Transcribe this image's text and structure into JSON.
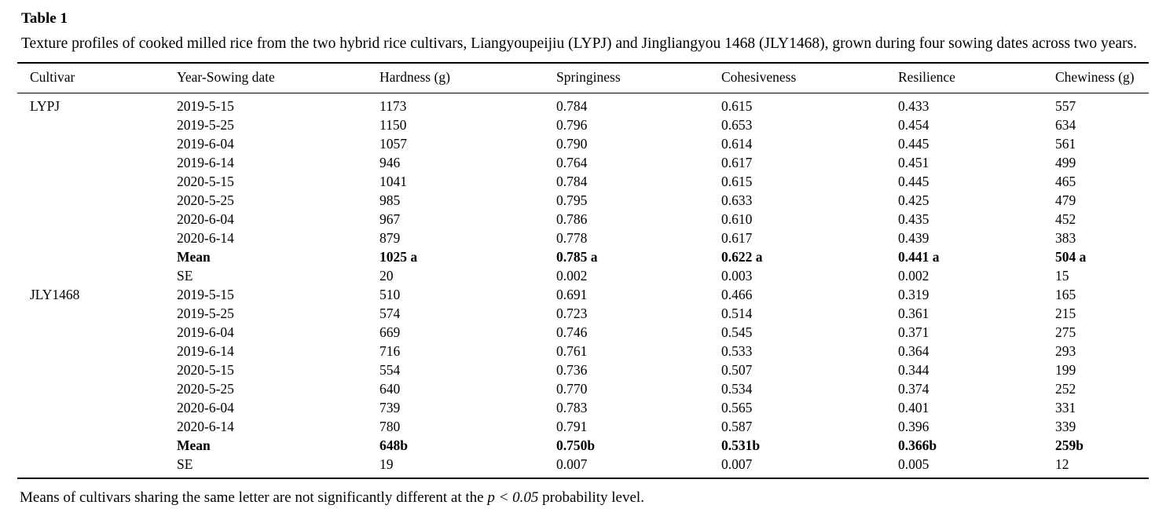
{
  "page": {
    "background_color": "#ffffff",
    "text_color": "#000000"
  },
  "table": {
    "label": "Table 1",
    "caption": "Texture profiles of cooked milled rice from the two hybrid rice cultivars, Liangyoupeijiu (LYPJ) and Jingliangyou 1468 (JLY1468), grown during four sowing dates across two years.",
    "columns": [
      "Cultivar",
      "Year-Sowing date",
      "Hardness (g)",
      "Springiness",
      "Cohesiveness",
      "Resilience",
      "Chewiness (g)"
    ],
    "rows": [
      {
        "cells": [
          "LYPJ",
          "2019-5-15",
          "1173",
          "0.784",
          "0.615",
          "0.433",
          "557"
        ],
        "bold": false
      },
      {
        "cells": [
          "",
          "2019-5-25",
          "1150",
          "0.796",
          "0.653",
          "0.454",
          "634"
        ],
        "bold": false
      },
      {
        "cells": [
          "",
          "2019-6-04",
          "1057",
          "0.790",
          "0.614",
          "0.445",
          "561"
        ],
        "bold": false
      },
      {
        "cells": [
          "",
          "2019-6-14",
          "946",
          "0.764",
          "0.617",
          "0.451",
          "499"
        ],
        "bold": false
      },
      {
        "cells": [
          "",
          "2020-5-15",
          "1041",
          "0.784",
          "0.615",
          "0.445",
          "465"
        ],
        "bold": false
      },
      {
        "cells": [
          "",
          "2020-5-25",
          "985",
          "0.795",
          "0.633",
          "0.425",
          "479"
        ],
        "bold": false
      },
      {
        "cells": [
          "",
          "2020-6-04",
          "967",
          "0.786",
          "0.610",
          "0.435",
          "452"
        ],
        "bold": false
      },
      {
        "cells": [
          "",
          "2020-6-14",
          "879",
          "0.778",
          "0.617",
          "0.439",
          "383"
        ],
        "bold": false
      },
      {
        "cells": [
          "",
          "Mean",
          "1025 a",
          "0.785 a",
          "0.622 a",
          "0.441 a",
          "504 a"
        ],
        "bold": true
      },
      {
        "cells": [
          "",
          "SE",
          "20",
          "0.002",
          "0.003",
          "0.002",
          "15"
        ],
        "bold": false
      },
      {
        "cells": [
          "JLY1468",
          "2019-5-15",
          "510",
          "0.691",
          "0.466",
          "0.319",
          "165"
        ],
        "bold": false
      },
      {
        "cells": [
          "",
          "2019-5-25",
          "574",
          "0.723",
          "0.514",
          "0.361",
          "215"
        ],
        "bold": false
      },
      {
        "cells": [
          "",
          "2019-6-04",
          "669",
          "0.746",
          "0.545",
          "0.371",
          "275"
        ],
        "bold": false
      },
      {
        "cells": [
          "",
          "2019-6-14",
          "716",
          "0.761",
          "0.533",
          "0.364",
          "293"
        ],
        "bold": false
      },
      {
        "cells": [
          "",
          "2020-5-15",
          "554",
          "0.736",
          "0.507",
          "0.344",
          "199"
        ],
        "bold": false
      },
      {
        "cells": [
          "",
          "2020-5-25",
          "640",
          "0.770",
          "0.534",
          "0.374",
          "252"
        ],
        "bold": false
      },
      {
        "cells": [
          "",
          "2020-6-04",
          "739",
          "0.783",
          "0.565",
          "0.401",
          "331"
        ],
        "bold": false
      },
      {
        "cells": [
          "",
          "2020-6-14",
          "780",
          "0.791",
          "0.587",
          "0.396",
          "339"
        ],
        "bold": false
      },
      {
        "cells": [
          "",
          "Mean",
          "648b",
          "0.750b",
          "0.531b",
          "0.366b",
          "259b"
        ],
        "bold": true
      },
      {
        "cells": [
          "",
          "SE",
          "19",
          "0.007",
          "0.007",
          "0.005",
          "12"
        ],
        "bold": false
      }
    ],
    "footnote": {
      "prefix": "Means of cultivars sharing the same letter are not significantly different at the ",
      "italic": "p < 0.05",
      "suffix": " probability level."
    }
  }
}
